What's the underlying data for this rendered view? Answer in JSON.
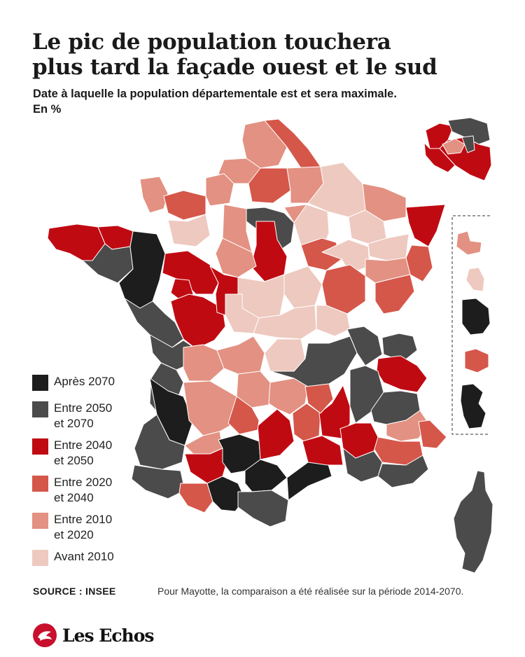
{
  "title_lines": [
    "Le pic de population touchera",
    "plus tard la façade ouest et le sud"
  ],
  "subtitle_lines": [
    "Date à laquelle la population départementale est et sera maximale.",
    "En %"
  ],
  "colors": {
    "after_2070": "#1d1d1d",
    "2050_2070": "#4b4b4b",
    "2040_2050": "#c00a12",
    "2020_2040": "#d5574a",
    "2010_2020": "#e39182",
    "before_2010": "#eec9bf",
    "border": "#ffffff"
  },
  "legend": [
    {
      "key": "after_2070",
      "label": "Après 2070"
    },
    {
      "key": "2050_2070",
      "label": "Entre 2050\net 2070"
    },
    {
      "key": "2040_2050",
      "label": "Entre 2040\net 2050"
    },
    {
      "key": "2020_2040",
      "label": "Entre 2020\net 2040"
    },
    {
      "key": "2010_2020",
      "label": "Entre 2010\net 2020"
    },
    {
      "key": "before_2010",
      "label": "Avant 2010"
    }
  ],
  "source": "SOURCE : INSEE",
  "note": "Pour Mayotte, la comparaison a été réalisée sur la période 2014-2070.",
  "brand": "Les Echos"
}
